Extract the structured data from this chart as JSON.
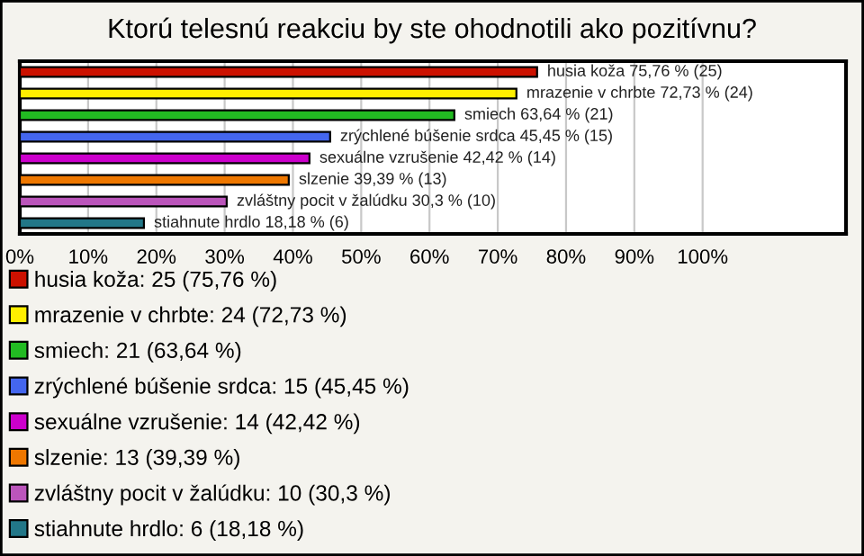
{
  "chart_data": {
    "type": "bar",
    "orientation": "horizontal",
    "title": "Ktorú telesnú reakciu by ste ohodnotili ako pozitívnu?",
    "categories": [
      null,
      null,
      null,
      null,
      null,
      null,
      null,
      null
    ],
    "series": [
      {
        "name": "husia koža: 25 (75,76 %)",
        "color": "#cc1100",
        "values": [
          75.76,
          null,
          null,
          null,
          null,
          null,
          null,
          null
        ],
        "value_labels": [
          "husia koža 75,76 % (25)",
          null,
          null,
          null,
          null,
          null,
          null,
          null
        ]
      },
      {
        "name": "mrazenie v chrbte: 24 (72,73 %)",
        "color": "#ffee00",
        "values": [
          null,
          72.73,
          null,
          null,
          null,
          null,
          null,
          null
        ],
        "value_labels": [
          null,
          "mrazenie v chrbte 72,73 % (24)",
          null,
          null,
          null,
          null,
          null,
          null
        ]
      },
      {
        "name": "smiech: 21 (63,64 %)",
        "color": "#22bb22",
        "values": [
          null,
          null,
          63.64,
          null,
          null,
          null,
          null,
          null
        ],
        "value_labels": [
          null,
          null,
          "smiech 63,64 % (21)",
          null,
          null,
          null,
          null,
          null
        ]
      },
      {
        "name": "zrýchlené búšenie srdca: 15 (45,45 %)",
        "color": "#4466ee",
        "values": [
          null,
          null,
          null,
          45.45,
          null,
          null,
          null,
          null
        ],
        "value_labels": [
          null,
          null,
          null,
          "zrýchlené búšenie srdca 45,45 % (15)",
          null,
          null,
          null,
          null
        ]
      },
      {
        "name": "sexuálne vzrušenie: 14 (42,42 %)",
        "color": "#cc00cc",
        "values": [
          null,
          null,
          null,
          null,
          42.42,
          null,
          null,
          null
        ],
        "value_labels": [
          null,
          null,
          null,
          null,
          "sexuálne vzrušenie 42,42 % (14)",
          null,
          null,
          null
        ]
      },
      {
        "name": "slzenie: 13 (39,39 %)",
        "color": "#ee7700",
        "values": [
          null,
          null,
          null,
          null,
          null,
          39.39,
          null,
          null
        ],
        "value_labels": [
          null,
          null,
          null,
          null,
          null,
          "slzenie 39,39 % (13)",
          null,
          null
        ]
      },
      {
        "name": "zvláštny pocit v žalúdku: 10 (30,3 %)",
        "color": "#bb55bb",
        "values": [
          null,
          null,
          null,
          null,
          null,
          null,
          30.3,
          null
        ],
        "value_labels": [
          null,
          null,
          null,
          null,
          null,
          null,
          "zvláštny pocit v žalúdku 30,3 % (10)",
          null
        ]
      },
      {
        "name": "stiahnute hrdlo: 6 (18,18 %)",
        "color": "#227788",
        "values": [
          null,
          null,
          null,
          null,
          null,
          null,
          null,
          18.18
        ],
        "value_labels": [
          null,
          null,
          null,
          null,
          null,
          null,
          null,
          "stiahnute hrdlo 18,18 % (6)"
        ]
      }
    ],
    "xlim": [
      0,
      121
    ],
    "xticks": [
      {
        "value": 0,
        "label": "0%"
      },
      {
        "value": 10,
        "label": "10%"
      },
      {
        "value": 20,
        "label": "20%"
      },
      {
        "value": 30,
        "label": "30%"
      },
      {
        "value": 40,
        "label": "40%"
      },
      {
        "value": 50,
        "label": "50%"
      },
      {
        "value": 60,
        "label": "60%"
      },
      {
        "value": 70,
        "label": "70%"
      },
      {
        "value": 80,
        "label": "80%"
      },
      {
        "value": 90,
        "label": "90%"
      },
      {
        "value": 100,
        "label": "100%"
      }
    ],
    "grid": "x",
    "legend": "bottom"
  }
}
